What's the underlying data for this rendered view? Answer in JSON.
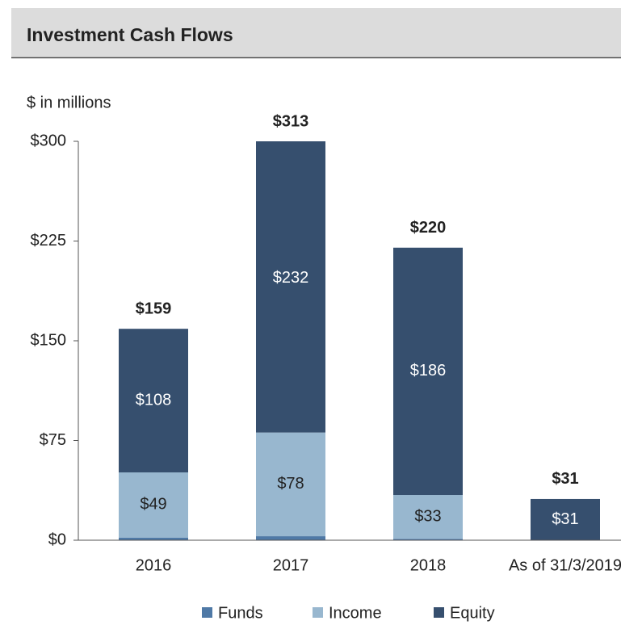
{
  "chart_data": {
    "type": "stacked_bar",
    "title": "Investment Cash Flows",
    "y_label": "$ in millions",
    "categories": [
      "2016",
      "2017",
      "2018",
      "As of 31/3/2019"
    ],
    "series": [
      {
        "name": "Funds",
        "color": "#4f79a6",
        "values": [
          2,
          3,
          1,
          0
        ]
      },
      {
        "name": "Income",
        "color": "#98b7cf",
        "values": [
          49,
          78,
          33,
          0
        ],
        "value_labels": [
          "$49",
          "$78",
          "$33",
          null
        ],
        "label_color": "#222222"
      },
      {
        "name": "Equity",
        "color": "#364f6e",
        "values": [
          108,
          232,
          186,
          31
        ],
        "value_labels": [
          "$108",
          "$232",
          "$186",
          "$31"
        ],
        "label_color": "#ffffff"
      }
    ],
    "totals": [
      159,
      313,
      220,
      31
    ],
    "total_labels": [
      "$159",
      "$313",
      "$220",
      "$31"
    ],
    "ylim": [
      0,
      300
    ],
    "yticks": [
      {
        "value": 0,
        "label": "$0"
      },
      {
        "value": 75,
        "label": "$75"
      },
      {
        "value": 150,
        "label": "$150"
      },
      {
        "value": 225,
        "label": "$225"
      },
      {
        "value": 300,
        "label": "$300"
      }
    ],
    "legend": "bottom"
  }
}
